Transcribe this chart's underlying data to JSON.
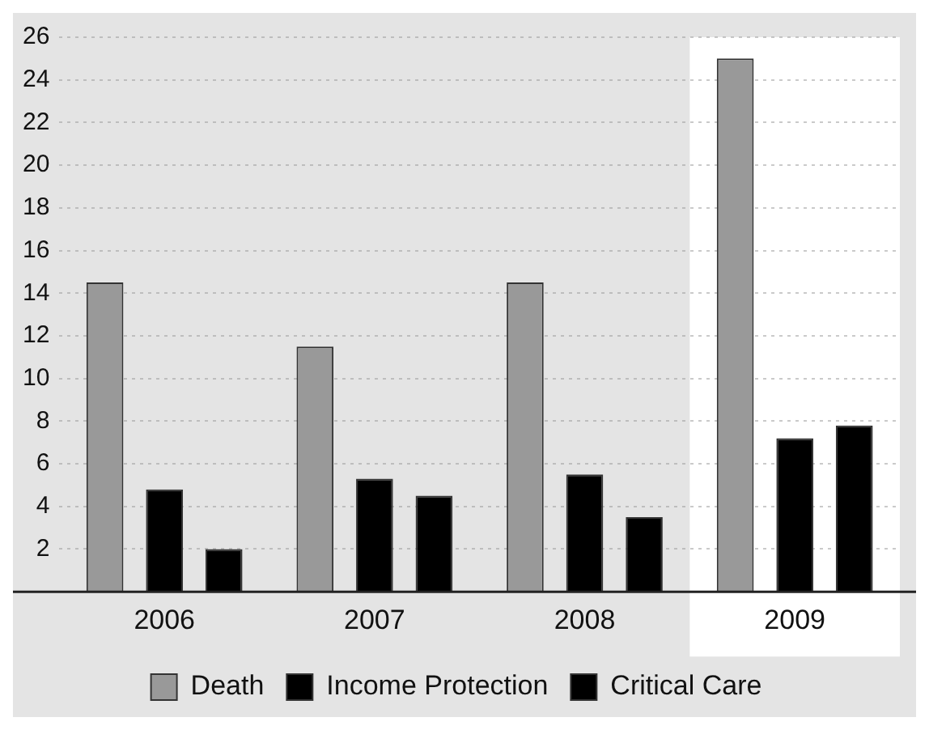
{
  "chart_data": {
    "type": "bar",
    "categories": [
      "2006",
      "2007",
      "2008",
      "2009"
    ],
    "series": [
      {
        "name": "Death",
        "color": "#999999",
        "values": [
          14.5,
          11.5,
          14.5,
          25
        ]
      },
      {
        "name": "Income Protection",
        "color": "#000000",
        "values": [
          4.8,
          5.3,
          5.5,
          7.2
        ]
      },
      {
        "name": "Critical Care",
        "color": "#000000",
        "values": [
          2,
          4.5,
          3.5,
          7.8
        ]
      }
    ],
    "ylim": [
      0,
      26
    ],
    "yticks": [
      {
        "value": 0,
        "label": null
      },
      2,
      4,
      6,
      8,
      10,
      12,
      14,
      16,
      18,
      20,
      22,
      24,
      26
    ],
    "bands": [
      {
        "axis": "x",
        "from": "2009",
        "to": "2009",
        "color": "#ffffff"
      }
    ],
    "grid": "y",
    "legend": "bottom"
  }
}
